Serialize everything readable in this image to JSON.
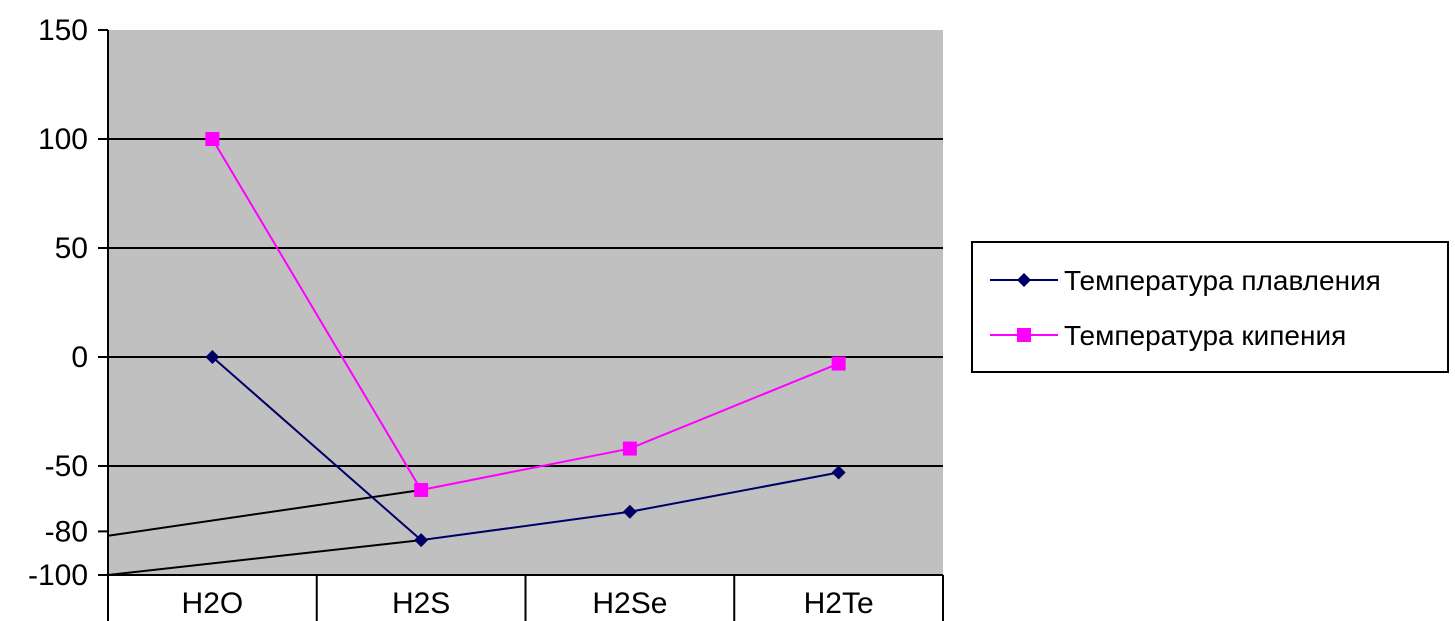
{
  "chart_data": {
    "type": "line",
    "categories": [
      "H2O",
      "H2S",
      "H2Se",
      "H2Te"
    ],
    "ylim": [
      -100,
      150
    ],
    "y_ticks": [
      150,
      100,
      50,
      0,
      -50,
      -80,
      -100
    ],
    "grid": true,
    "legend_position": "right",
    "series": [
      {
        "name": "Температура плавления",
        "values": [
          0,
          -84,
          -71,
          -53
        ],
        "color": "#000066",
        "marker": "diamond"
      },
      {
        "name": "Температура кипения",
        "values": [
          100,
          -61,
          -42,
          -3
        ],
        "color": "#ff00ff",
        "marker": "square"
      }
    ],
    "annotation_lines": [
      {
        "from": {
          "category_index": -0.5,
          "y": -82
        },
        "to": {
          "category_index": 1,
          "y": -61
        }
      },
      {
        "from": {
          "category_index": -0.5,
          "y": -100
        },
        "to": {
          "category_index": 1,
          "y": -84
        }
      }
    ],
    "plot_background": "#c0c0c0",
    "grid_color": "#000000"
  }
}
